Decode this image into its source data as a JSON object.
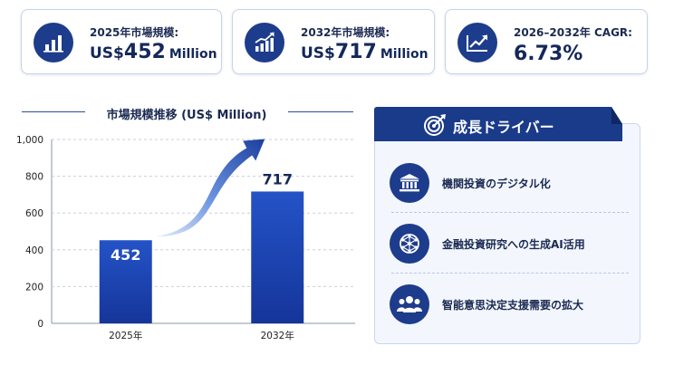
{
  "kpis": [
    {
      "icon": "bar-chart-icon",
      "label": "2025年市場規模:",
      "prefix": "US$",
      "number": "452",
      "suffix": "Million"
    },
    {
      "icon": "growth-chart-icon",
      "label": "2032年市場規模:",
      "prefix": "US$",
      "number": "717",
      "suffix": "Million"
    },
    {
      "icon": "trend-up-icon",
      "label": "2026–2032年 CAGR:",
      "value": "6.73%"
    }
  ],
  "chart_data": {
    "type": "bar",
    "title": "市場規模推移 (US$ Million)",
    "categories": [
      "2025年",
      "2032年"
    ],
    "values": [
      452,
      717
    ],
    "data_labels": [
      "452",
      "717"
    ],
    "ylim": [
      0,
      1000
    ],
    "yticks": [
      0,
      200,
      400,
      600,
      800,
      1000
    ],
    "ytick_labels": [
      "0",
      "200",
      "400",
      "600",
      "800",
      "1,000"
    ],
    "grid": true,
    "bar_color": "#1d46b4",
    "annotation": "growth arrow from 2025 bar to 2032 bar"
  },
  "drivers": {
    "title": "成長ドライバー",
    "title_icon": "target-icon",
    "items": [
      {
        "icon": "bank-icon",
        "text": "機関投資のデジタル化"
      },
      {
        "icon": "network-brain-icon",
        "text": "金融投資研究への生成AI活用"
      },
      {
        "icon": "team-icon",
        "text": "智能意思決定支援需要の拡大"
      }
    ]
  },
  "colors": {
    "navy": "#1a3b89",
    "bar": "#1d46b4",
    "panel_bg": "#f3f7fd"
  }
}
